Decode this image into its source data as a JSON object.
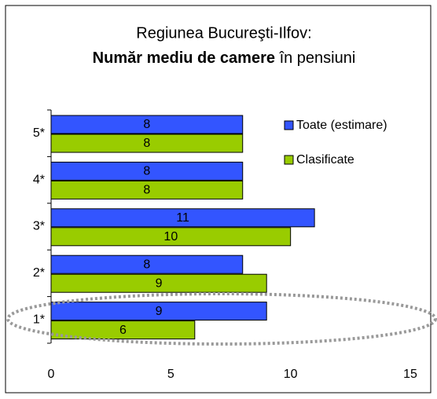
{
  "chart_data": {
    "type": "bar",
    "orientation": "horizontal",
    "title": "Regiunea Bucureşti-Ilfov:",
    "subtitle_bold": "Număr mediu de camere",
    "subtitle": "în pensiuni",
    "categories": [
      "1*",
      "2*",
      "3*",
      "4*",
      "5*"
    ],
    "series": [
      {
        "name": "Toate (estimare)",
        "color": "#3355ff",
        "values": [
          9,
          8,
          11,
          8,
          8
        ]
      },
      {
        "name": "Clasificate",
        "color": "#99cc00",
        "values": [
          6,
          9,
          10,
          8,
          8
        ]
      }
    ],
    "xlim": [
      0,
      15
    ],
    "xticks": [
      0,
      5,
      10,
      15
    ],
    "legend": "right"
  }
}
